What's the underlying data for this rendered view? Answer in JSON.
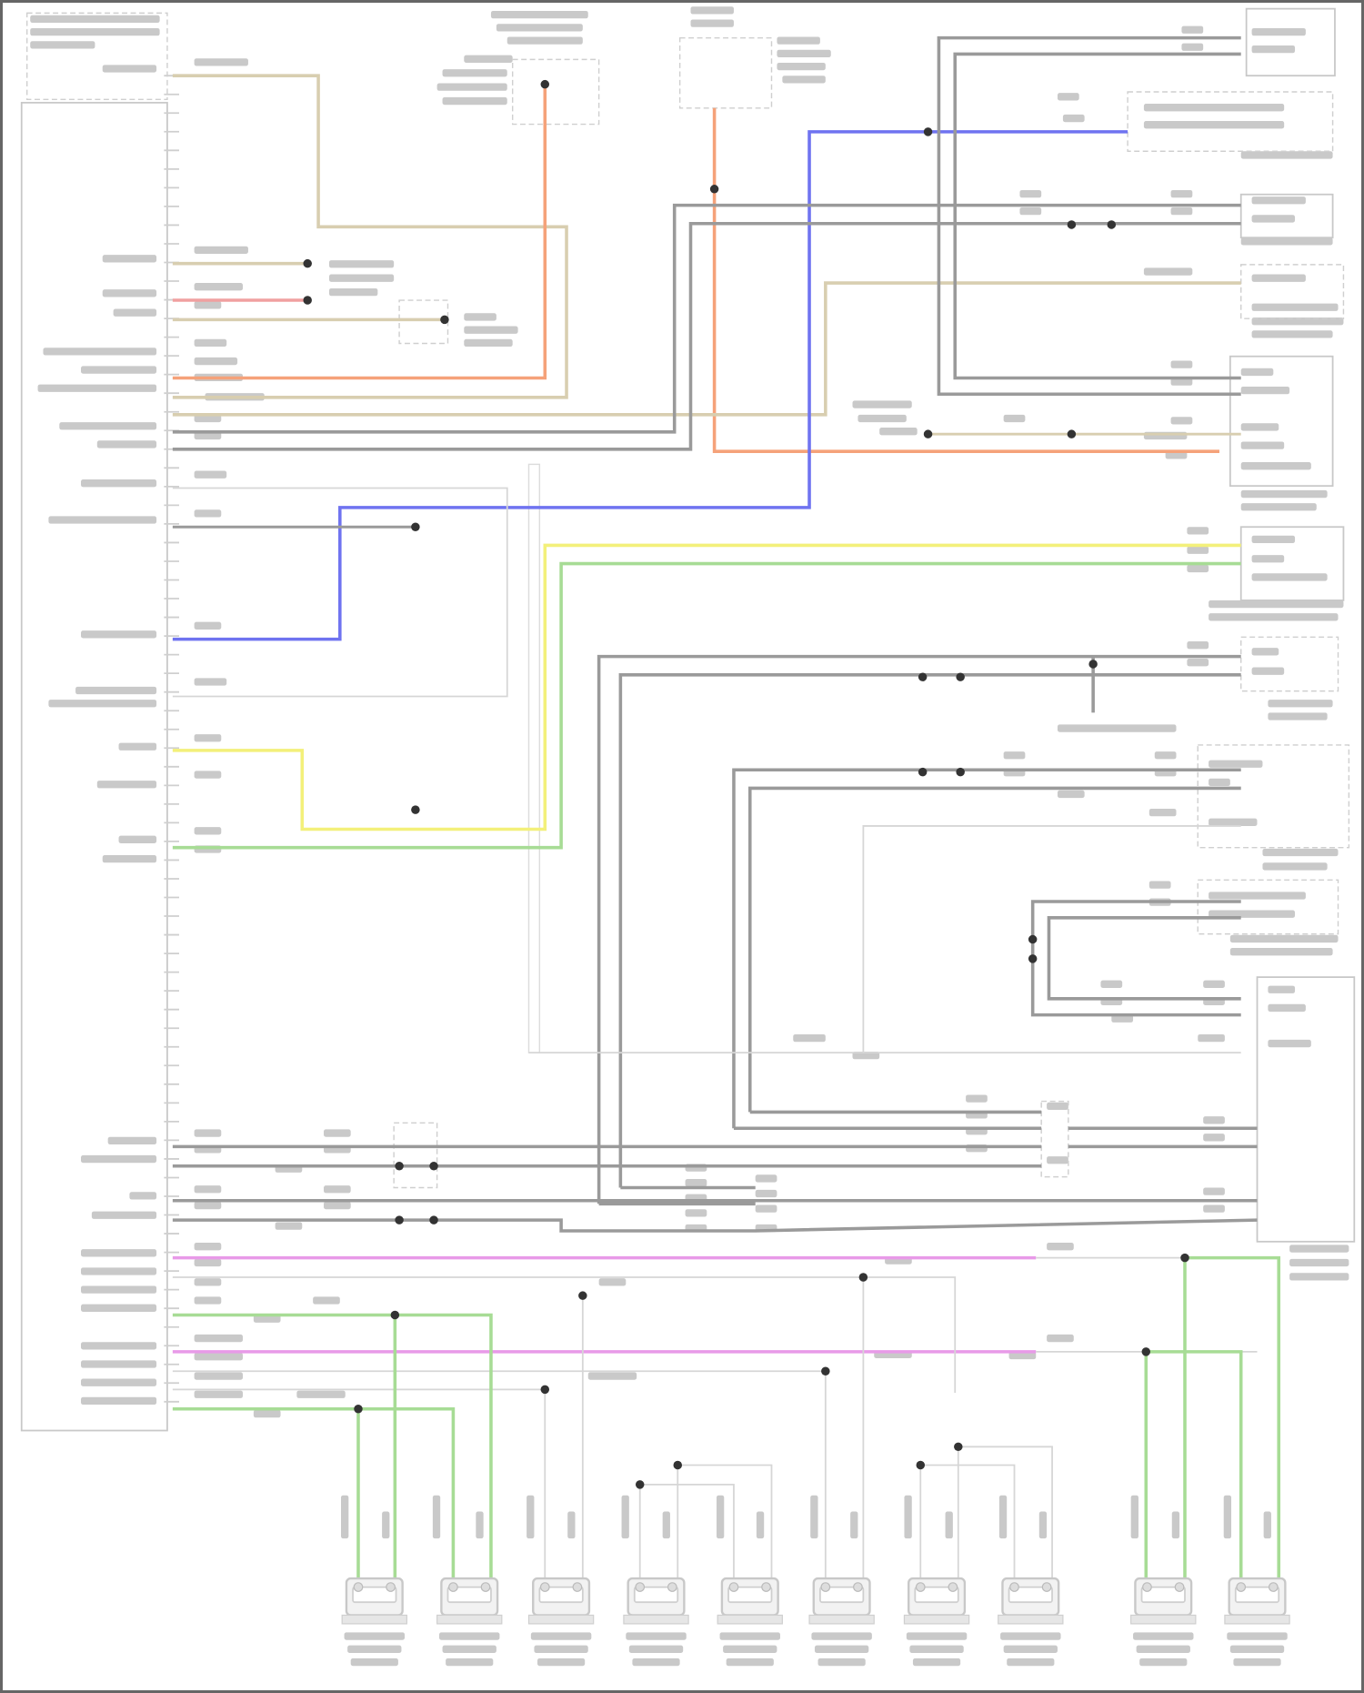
{
  "diagram": {
    "type": "wiring-diagram",
    "wire_colors": {
      "tan": "#d8ceb0",
      "orange": "#f5a27a",
      "red": "#f0a0a0",
      "blue": "#6f73f0",
      "yellow": "#f3f07a",
      "green": "#a7dc95",
      "gray": "#9a9a9a",
      "magenta": "#e89ae8",
      "light_gray": "#d6d6d6"
    },
    "speaker_count": 10,
    "icons": [
      "speaker-icon",
      "splice-dot-icon",
      "connector-icon",
      "fuse-icon"
    ]
  }
}
